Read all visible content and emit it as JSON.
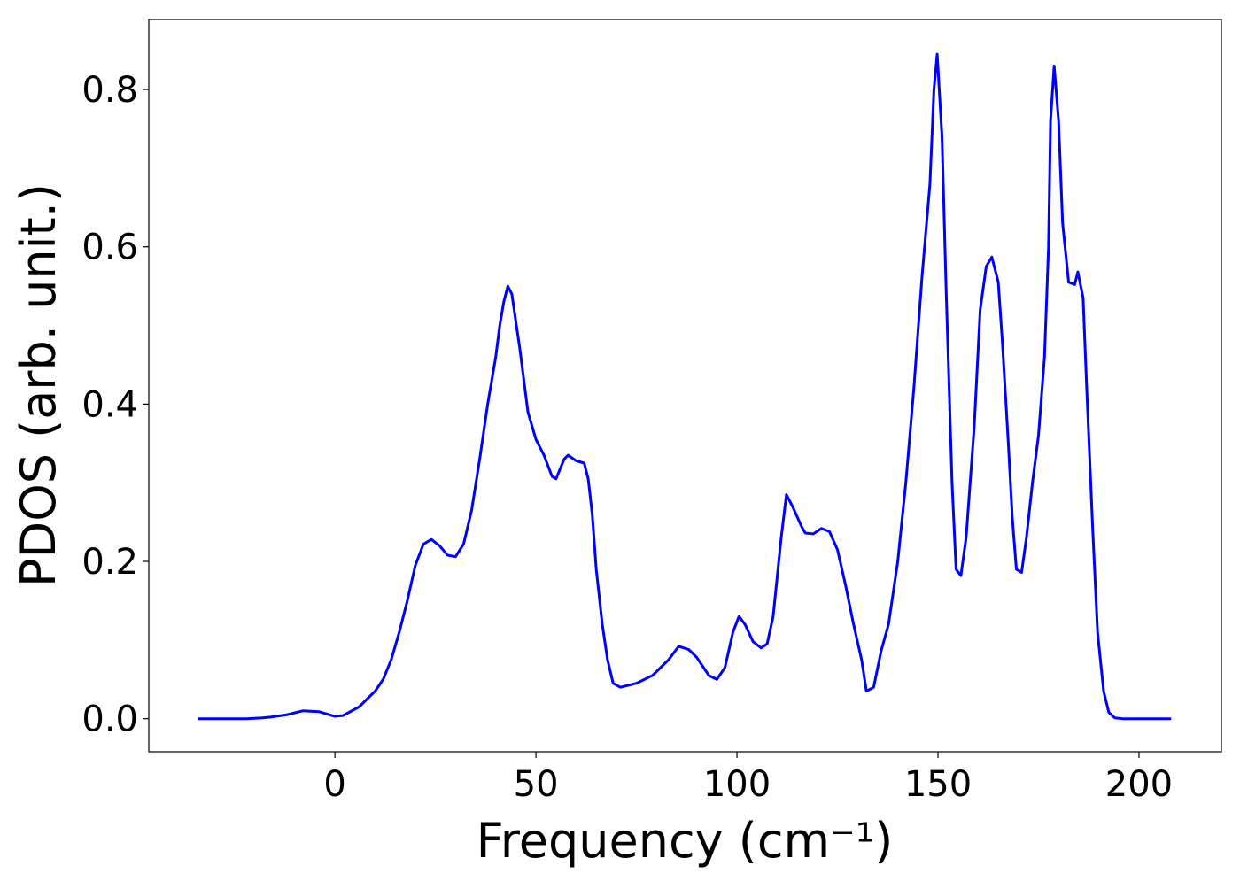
{
  "chart_data": {
    "type": "line",
    "x_label": "Frequency (cm⁻¹)",
    "y_label": "PDOS (arb. unit.)",
    "xlim": [
      -46.3,
      220.5
    ],
    "ylim": [
      -0.042,
      0.889
    ],
    "xticks": [
      0,
      50,
      100,
      150,
      200
    ],
    "yticks": [
      {
        "value": 0,
        "label": "0.0"
      },
      0.2,
      0.4,
      0.6,
      0.8
    ],
    "grid": false,
    "series": [
      {
        "color": "#0000ff",
        "x": [
          -34,
          -28,
          -22,
          -18,
          -16,
          -12,
          -8,
          -4,
          0,
          2,
          6,
          10,
          12,
          14,
          16,
          18,
          20,
          22,
          24,
          26,
          28,
          30,
          32,
          34,
          36,
          38,
          40,
          41,
          42,
          43,
          44,
          46,
          48,
          50,
          52,
          54,
          55,
          57,
          58,
          60,
          62,
          63,
          64,
          65,
          66.5,
          67.8,
          69.2,
          71,
          75,
          79,
          83,
          85.5,
          88,
          90,
          93,
          95,
          97,
          99,
          100.5,
          102,
          104,
          106,
          107.5,
          109,
          111,
          112.3,
          114,
          116,
          117,
          119,
          121,
          123,
          125,
          127,
          129,
          131,
          132.2,
          134,
          135.9,
          137.7,
          140,
          142,
          144,
          146,
          148,
          149,
          149.8,
          151,
          152,
          153.5,
          154.5,
          155.7,
          157,
          159,
          160.5,
          162,
          163.4,
          165,
          166,
          167.5,
          168.5,
          169.5,
          170.8,
          172,
          173.5,
          175,
          176.5,
          177.5,
          178,
          178.9,
          180,
          181,
          182.5,
          184,
          184.8,
          186.1,
          187,
          188.5,
          189.7,
          191.2,
          192.5,
          194,
          196,
          208
        ],
        "values": [
          0,
          0,
          0,
          0.001,
          0.002,
          0.005,
          0.01,
          0.009,
          0.003,
          0.004,
          0.015,
          0.035,
          0.05,
          0.075,
          0.11,
          0.15,
          0.195,
          0.222,
          0.228,
          0.22,
          0.208,
          0.206,
          0.222,
          0.265,
          0.33,
          0.4,
          0.46,
          0.5,
          0.53,
          0.55,
          0.54,
          0.47,
          0.39,
          0.355,
          0.335,
          0.308,
          0.305,
          0.33,
          0.335,
          0.328,
          0.325,
          0.305,
          0.26,
          0.19,
          0.12,
          0.075,
          0.045,
          0.04,
          0.045,
          0.055,
          0.075,
          0.092,
          0.088,
          0.078,
          0.055,
          0.05,
          0.065,
          0.11,
          0.13,
          0.12,
          0.098,
          0.09,
          0.095,
          0.13,
          0.23,
          0.285,
          0.268,
          0.245,
          0.236,
          0.235,
          0.242,
          0.238,
          0.215,
          0.17,
          0.12,
          0.075,
          0.035,
          0.04,
          0.087,
          0.12,
          0.2,
          0.3,
          0.42,
          0.56,
          0.68,
          0.8,
          0.845,
          0.74,
          0.55,
          0.3,
          0.19,
          0.182,
          0.23,
          0.37,
          0.52,
          0.575,
          0.587,
          0.555,
          0.48,
          0.35,
          0.255,
          0.19,
          0.186,
          0.23,
          0.3,
          0.36,
          0.46,
          0.6,
          0.76,
          0.83,
          0.76,
          0.63,
          0.555,
          0.552,
          0.568,
          0.535,
          0.42,
          0.24,
          0.11,
          0.035,
          0.008,
          0.001,
          0,
          0
        ]
      }
    ]
  }
}
